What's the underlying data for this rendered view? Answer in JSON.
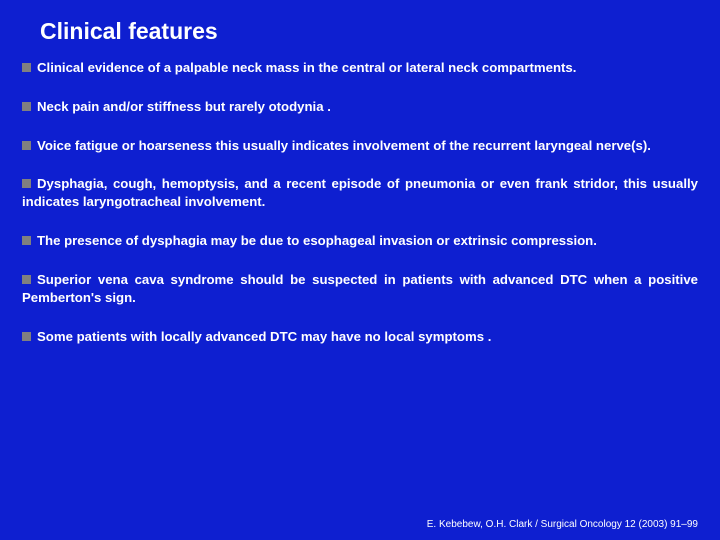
{
  "title": "Clinical features",
  "background_color": "#0e1fd0",
  "text_color": "#ffffff",
  "bullet_color": "#808080",
  "title_fontsize": 23,
  "body_fontsize": 13.2,
  "citation_fontsize": 10,
  "items": [
    "Clinical evidence of a palpable neck mass in the central or lateral neck compartments.",
    "Neck pain and/or stiffness but rarely otodynia .",
    "Voice fatigue or hoarseness this usually indicates involvement of the recurrent laryngeal nerve(s).",
    "Dysphagia, cough, hemoptysis, and a recent episode of pneumonia or even frank stridor, this usually indicates laryngotracheal involvement.",
    "The presence of dysphagia may be due to esophageal invasion or extrinsic compression.",
    "Superior vena cava syndrome should be suspected in patients with advanced DTC when a positive Pemberton's sign.",
    "Some patients with locally advanced DTC may have no local symptoms ."
  ],
  "citation": "E. Kebebew, O.H. Clark / Surgical Oncology 12 (2003) 91–99"
}
